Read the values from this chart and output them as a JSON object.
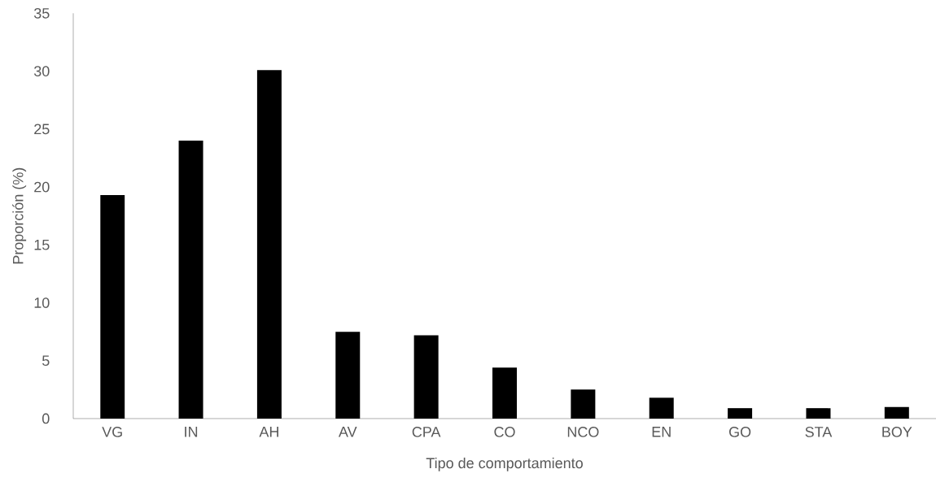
{
  "chart_data": {
    "type": "bar",
    "xlabel": "Tipo de comportamiento",
    "ylabel": "Proporción (%)",
    "categories": [
      "VG",
      "IN",
      "AH",
      "AV",
      "CPA",
      "CO",
      "NCO",
      "EN",
      "GO",
      "STA",
      "BOY"
    ],
    "values": [
      19.3,
      24.0,
      30.1,
      7.5,
      7.2,
      4.4,
      2.5,
      1.8,
      0.9,
      0.9,
      1.0
    ],
    "color": "#000000",
    "ylim": [
      0,
      35
    ],
    "yticks": [
      0,
      5,
      10,
      15,
      20,
      25,
      30,
      35
    ]
  }
}
